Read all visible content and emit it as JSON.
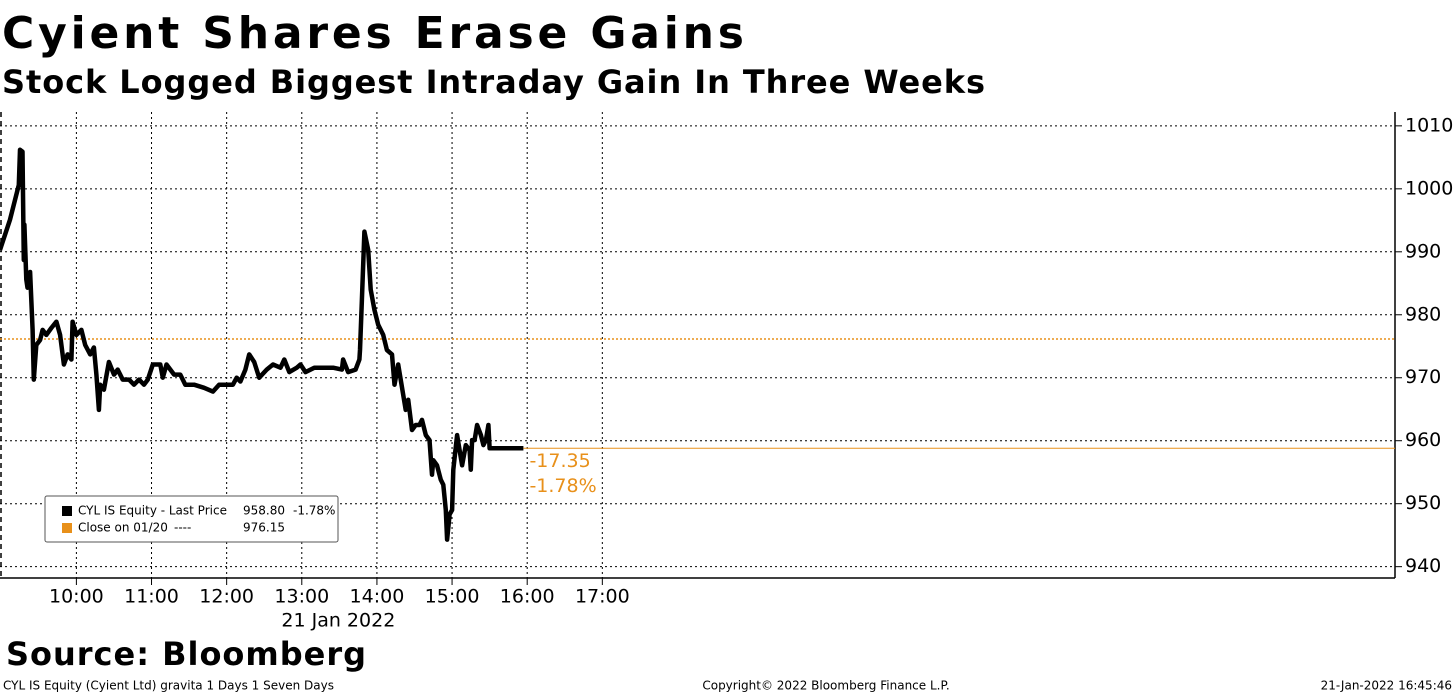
{
  "chart_data": {
    "type": "line",
    "title": "Cyient Shares Erase Gains",
    "subtitle": "Stock Logged Biggest Intraday Gain In Three Weeks",
    "xlabel": "21 Jan 2022",
    "source": "Source: Bloomberg",
    "footer": [
      "CYL IS Equity (Cyient Ltd) gravita 1 Days 1 Seven Days",
      "Copyright© 2022 Bloomberg Finance L.P.",
      "21-Jan-2022 16:45:46"
    ],
    "x": [
      539,
      547,
      554,
      555,
      557,
      558,
      558.5,
      560,
      561,
      563,
      565,
      566,
      568,
      571,
      573,
      576,
      580,
      584,
      587,
      590,
      593,
      596,
      597,
      600,
      604,
      607,
      611,
      614,
      616,
      618,
      619,
      622,
      626,
      630,
      633,
      637,
      642,
      646,
      650,
      654,
      657,
      661,
      667,
      669,
      672,
      678,
      683,
      687,
      694,
      702,
      709,
      714,
      720,
      725,
      728,
      731,
      735,
      738,
      742,
      746,
      752,
      757,
      763,
      766,
      770,
      776,
      779,
      783,
      790,
      797,
      805,
      812,
      813,
      817,
      823,
      826,
      826.5,
      828,
      830,
      833,
      835,
      838,
      841,
      845,
      848,
      852,
      854,
      857,
      859,
      863,
      865,
      868,
      871,
      874,
      876,
      879,
      882,
      884,
      885,
      888,
      891,
      893,
      895,
      896,
      898,
      900,
      901,
      904,
      906,
      908,
      911,
      914,
      915,
      916,
      918,
      920,
      923,
      925,
      927,
      929,
      930,
      957
    ],
    "series": [
      {
        "name": "CYL IS Equity - Last Price",
        "color": "#000000",
        "values": [
          990.3,
          995.1,
          1000.6,
          1006.2,
          1005.9,
          988.7,
          994.3,
          985.6,
          984.3,
          986.8,
          977.6,
          969.7,
          975.2,
          976,
          977.6,
          976.8,
          977.9,
          978.9,
          976.8,
          972.1,
          973.7,
          972.9,
          978.9,
          976.8,
          977.6,
          975.2,
          973.7,
          974.8,
          970.5,
          964.9,
          968.9,
          968.1,
          972.5,
          970.5,
          971.3,
          969.7,
          969.7,
          968.9,
          969.7,
          968.9,
          969.7,
          972.1,
          972.1,
          970,
          972.1,
          970.5,
          970.5,
          968.9,
          968.9,
          968.4,
          967.8,
          968.9,
          968.9,
          968.9,
          970,
          969.4,
          971.3,
          973.7,
          972.5,
          970,
          971.3,
          972.1,
          971.6,
          972.9,
          970.9,
          971.6,
          972.1,
          970.9,
          971.6,
          971.6,
          971.6,
          971.3,
          972.9,
          970.9,
          971.3,
          972.9,
          974.4,
          982.4,
          993.2,
          990.3,
          984,
          980.8,
          978.4,
          976.8,
          974.4,
          973.7,
          968.9,
          972.1,
          969.7,
          964.9,
          966.5,
          961.7,
          962.5,
          962.5,
          963.3,
          960.9,
          960.1,
          954.6,
          956.9,
          956.1,
          953.8,
          953,
          949,
          944.3,
          948.3,
          949,
          955.4,
          960.9,
          958.5,
          956.1,
          959.3,
          958.5,
          955.4,
          960.1,
          960.1,
          962.5,
          960.9,
          959.3,
          960.1,
          962.5,
          958.8,
          958.8
        ]
      }
    ],
    "reference_line": {
      "name": "Close on 01/20",
      "value": 976.15,
      "color": "#e8901a"
    },
    "legend": [
      {
        "name": "CYL IS Equity - Last Price",
        "last": "958.80",
        "change": "-1.78%"
      },
      {
        "name": "Close on 01/20",
        "dash": "----",
        "last": "976.15"
      }
    ],
    "annotations": [
      "-17.35",
      "-1.78%"
    ],
    "xlim": [
      539,
      1653
    ],
    "xticks": [
      {
        "value": 600,
        "label": "10:00"
      },
      {
        "value": 660,
        "label": "11:00"
      },
      {
        "value": 720,
        "label": "12:00"
      },
      {
        "value": 780,
        "label": "13:00"
      },
      {
        "value": 840,
        "label": "14:00"
      },
      {
        "value": 900,
        "label": "15:00"
      },
      {
        "value": 960,
        "label": "16:00"
      },
      {
        "value": 1020,
        "label": "17:00"
      }
    ],
    "ylim": [
      938.2,
      1012.2
    ],
    "yticks": [
      940,
      950,
      960,
      970,
      980,
      990,
      1000,
      1010
    ],
    "grid": true
  }
}
